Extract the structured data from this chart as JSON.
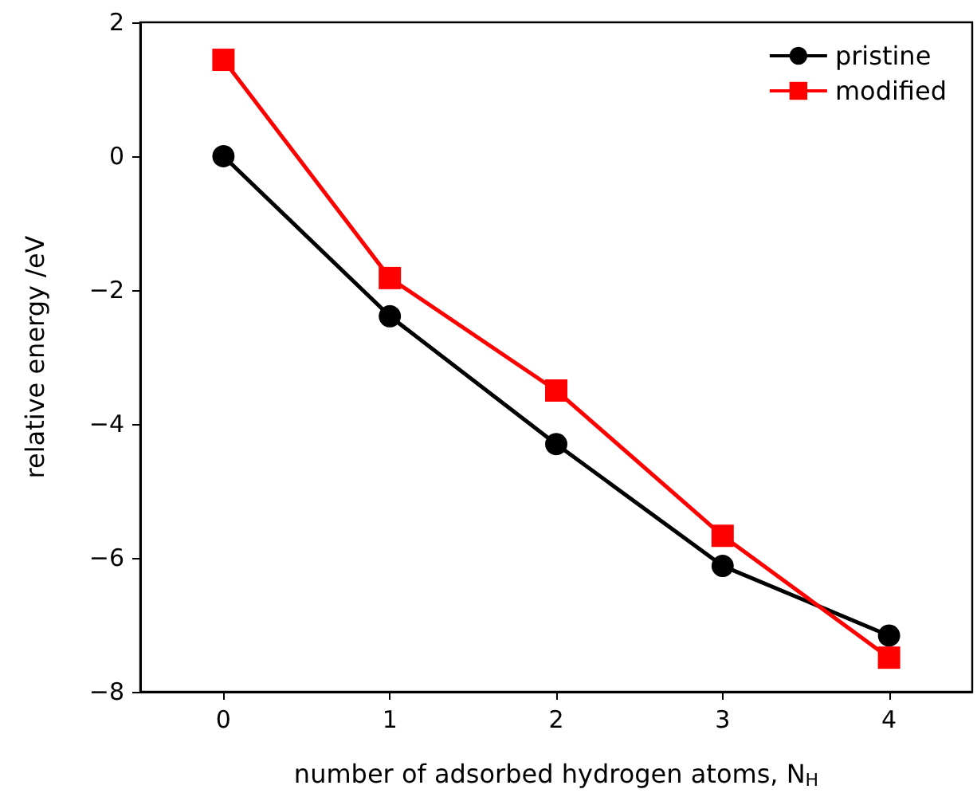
{
  "chart_data": {
    "type": "line",
    "xlabel": "number of adsorbed hydrogen atoms, N$_{H}$",
    "ylabel": "relative energy /eV",
    "x": [
      0,
      1,
      2,
      3,
      4
    ],
    "series": [
      {
        "name": "pristine",
        "color": "#000000",
        "marker": "circle",
        "values": [
          0,
          -2.39,
          -4.3,
          -6.12,
          -7.16
        ]
      },
      {
        "name": "modified",
        "color": "#ff0000",
        "marker": "square",
        "values": [
          1.44,
          -1.82,
          -3.5,
          -5.67,
          -7.49
        ]
      }
    ],
    "xlim": [
      -0.5,
      4.5
    ],
    "xticks": [
      0,
      1,
      2,
      3,
      4
    ],
    "ylim": [
      -8,
      2
    ],
    "yticks": [
      -8,
      -6,
      -4,
      -2,
      0,
      2
    ],
    "grid": false,
    "legend": "top right",
    "line_style": "solid"
  }
}
